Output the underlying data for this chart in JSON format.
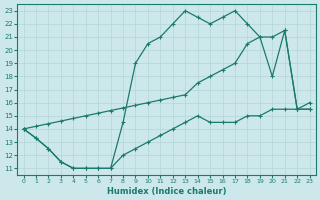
{
  "xlabel": "Humidex (Indice chaleur)",
  "bg_color": "#cde8ea",
  "line_color": "#1a7a6e",
  "grid_color": "#b8d8da",
  "xlim": [
    -0.5,
    23.5
  ],
  "ylim": [
    10.5,
    23.5
  ],
  "xticks": [
    0,
    1,
    2,
    3,
    4,
    5,
    6,
    7,
    8,
    9,
    10,
    11,
    12,
    13,
    14,
    15,
    16,
    17,
    18,
    19,
    20,
    21,
    22,
    23
  ],
  "yticks": [
    11,
    12,
    13,
    14,
    15,
    16,
    17,
    18,
    19,
    20,
    21,
    22,
    23
  ],
  "curve1_x": [
    0,
    1,
    2,
    3,
    4,
    5,
    6,
    7,
    8,
    9,
    10,
    11,
    12,
    13,
    14,
    15,
    16,
    17,
    18,
    19,
    20,
    21,
    22,
    23
  ],
  "curve1_y": [
    14,
    13.3,
    12.5,
    11.5,
    11.0,
    11.0,
    11.0,
    11.0,
    14.5,
    19.0,
    20.5,
    21.0,
    22.0,
    23.0,
    22.5,
    22.0,
    22.5,
    23.0,
    22.0,
    21.0,
    18.0,
    21.5,
    15.5,
    15.5
  ],
  "curve2_x": [
    0,
    1,
    2,
    3,
    4,
    5,
    6,
    7,
    8,
    9,
    10,
    11,
    12,
    13,
    14,
    15,
    16,
    17,
    18,
    19,
    20,
    21,
    22,
    23
  ],
  "curve2_y": [
    14.0,
    14.2,
    14.4,
    14.6,
    14.8,
    15.0,
    15.2,
    15.4,
    15.6,
    15.8,
    16.0,
    16.2,
    16.4,
    16.6,
    17.5,
    18.0,
    18.5,
    19.0,
    20.5,
    21.0,
    21.0,
    21.5,
    15.5,
    15.5
  ],
  "curve3_x": [
    0,
    1,
    2,
    3,
    4,
    5,
    6,
    7,
    8,
    9,
    10,
    11,
    12,
    13,
    14,
    15,
    16,
    17,
    18,
    19,
    20,
    21,
    22,
    23
  ],
  "curve3_y": [
    14.0,
    13.3,
    12.5,
    11.5,
    11.0,
    11.0,
    11.0,
    11.0,
    12.0,
    12.5,
    13.0,
    13.5,
    14.0,
    14.5,
    15.0,
    14.5,
    14.5,
    14.5,
    15.0,
    15.0,
    15.5,
    15.5,
    15.5,
    16.0
  ]
}
